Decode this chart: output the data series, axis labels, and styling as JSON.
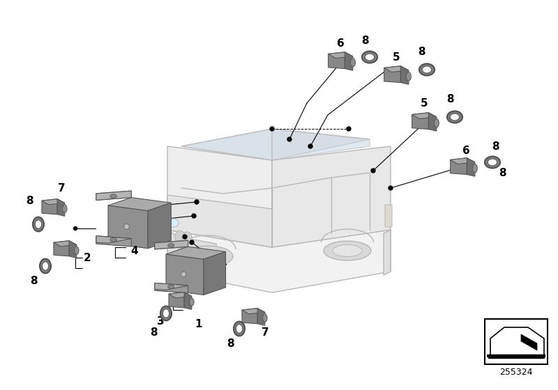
{
  "bg_color": "#ffffff",
  "line_color": "#000000",
  "gray_dark": "#606060",
  "gray_mid": "#808080",
  "gray_light": "#b0b0b0",
  "gray_car": "#d8d8d8",
  "diagram_number": "255324",
  "figsize": [
    8.0,
    5.6
  ],
  "dpi": 100,
  "label_fs": 11
}
